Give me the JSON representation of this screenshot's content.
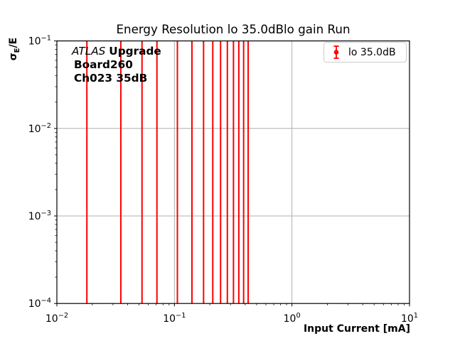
{
  "chart_data": {
    "type": "scatter",
    "style": "errorbar-vertical-lines",
    "title": "Energy Resolution lo 35.0dBlo gain Run",
    "xlabel": "Input Current [mA]",
    "ylabel": "σE/E",
    "ylabel_parts": {
      "base": "σ",
      "sub": "E",
      "rest": "/E"
    },
    "x_scale": "log",
    "y_scale": "log",
    "xlim": [
      0.01,
      10
    ],
    "ylim": [
      0.0001,
      0.1
    ],
    "x_log_range": [
      -2,
      1
    ],
    "y_log_range": [
      -4,
      -1
    ],
    "x_tick_exponents": [
      -2,
      -1,
      0,
      1
    ],
    "y_tick_exponents": [
      -1,
      -2,
      -3,
      -4
    ],
    "grid": true,
    "legend": {
      "label": "lo 35.0dB",
      "position": "upper right"
    },
    "series": [
      {
        "name": "lo 35.0dB",
        "color": "#ff0000",
        "x": [
          0.018,
          0.035,
          0.053,
          0.071,
          0.106,
          0.141,
          0.177,
          0.212,
          0.247,
          0.282,
          0.318,
          0.353,
          0.388,
          0.424
        ],
        "y_note": "error bars span the entire visible y range (values off-scale)"
      }
    ]
  },
  "annotation": {
    "experiment": "ATLAS",
    "program": "Upgrade",
    "board": "Board260",
    "channel": "Ch023 35dB"
  },
  "colors": {
    "series": "#ff0000",
    "grid": "#b0b0b0",
    "axes": "#000000",
    "legend_border": "#cccccc",
    "background": "#ffffff"
  }
}
